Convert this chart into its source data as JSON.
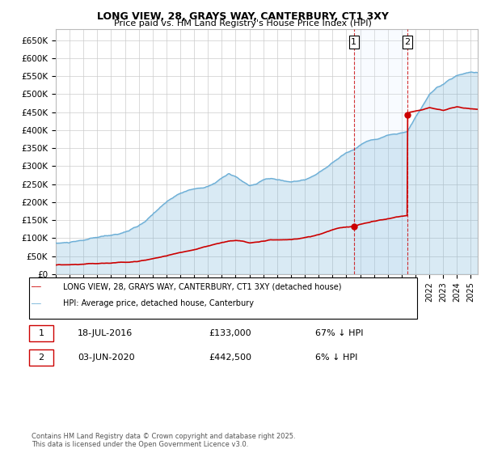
{
  "title": "LONG VIEW, 28, GRAYS WAY, CANTERBURY, CT1 3XY",
  "subtitle": "Price paid vs. HM Land Registry's House Price Index (HPI)",
  "ylim": [
    0,
    680000
  ],
  "yticks": [
    0,
    50000,
    100000,
    150000,
    200000,
    250000,
    300000,
    350000,
    400000,
    450000,
    500000,
    550000,
    600000,
    650000
  ],
  "ytick_labels": [
    "£0",
    "£50K",
    "£100K",
    "£150K",
    "£200K",
    "£250K",
    "£300K",
    "£350K",
    "£400K",
    "£450K",
    "£500K",
    "£550K",
    "£600K",
    "£650K"
  ],
  "hpi_color": "#6baed6",
  "hpi_fill_color": "#d6e9f8",
  "price_color": "#cc0000",
  "vline_color": "#cc0000",
  "shade_color": "#ddeeff",
  "legend_label_price": "LONG VIEW, 28, GRAYS WAY, CANTERBURY, CT1 3XY (detached house)",
  "legend_label_hpi": "HPI: Average price, detached house, Canterbury",
  "annotation1_label": "1",
  "annotation2_label": "2",
  "sale1_date_label": "18-JUL-2016",
  "sale1_price_label": "£133,000",
  "sale1_hpi_label": "67% ↓ HPI",
  "sale2_date_label": "03-JUN-2020",
  "sale2_price_label": "£442,500",
  "sale2_hpi_label": "6% ↓ HPI",
  "footnote": "Contains HM Land Registry data © Crown copyright and database right 2025.\nThis data is licensed under the Open Government Licence v3.0.",
  "sale1_year": 2016.55,
  "sale1_price": 133000,
  "sale2_year": 2020.42,
  "sale2_price": 442500,
  "xmin": 1995,
  "xmax": 2025.5
}
